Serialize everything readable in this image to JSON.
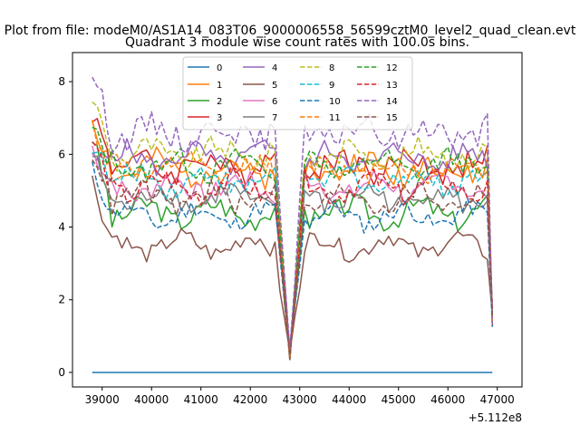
{
  "chart_data": {
    "type": "line",
    "suptitle": "Plot from file: modeM0/AS1A14_083T06_9000006558_56599cztM0_level2_quad_clean.evt",
    "title": "Quadrant 3 module wise count rates with 100.0s bins.",
    "xlabel": "",
    "ylabel": "",
    "x_offset_label": "+5.112e8",
    "xlim": [
      38400,
      47500
    ],
    "ylim": [
      -0.4,
      8.8
    ],
    "x_start": 38800,
    "x_step": 100,
    "n_points": 82,
    "dip": {
      "start": 42500,
      "bottom": 42800,
      "end": 43100,
      "min": 0.3
    },
    "last_point": {
      "x": 46900,
      "value": 1.5
    },
    "xticks": [
      39000,
      40000,
      41000,
      42000,
      43000,
      44000,
      45000,
      46000,
      47000
    ],
    "xtick_labels": [
      "39000",
      "40000",
      "41000",
      "42000",
      "43000",
      "44000",
      "45000",
      "46000",
      "47000"
    ],
    "yticks": [
      0,
      2,
      4,
      6,
      8
    ],
    "ytick_labels": [
      "0",
      "2",
      "4",
      "6",
      "8"
    ],
    "legend_position": "upper center",
    "legend_columns": 4,
    "series": [
      {
        "name": "0",
        "color": "#1f77b4",
        "dashed": false,
        "level": 0.0,
        "start": 0.0,
        "amp": 0.0,
        "seed": 1
      },
      {
        "name": "1",
        "color": "#ff7f0e",
        "dashed": false,
        "level": 5.6,
        "start": 7.0,
        "amp": 0.35,
        "seed": 2
      },
      {
        "name": "2",
        "color": "#2ca02c",
        "dashed": false,
        "level": 4.4,
        "start": 6.5,
        "amp": 0.3,
        "seed": 3
      },
      {
        "name": "3",
        "color": "#d62728",
        "dashed": false,
        "level": 5.7,
        "start": 7.2,
        "amp": 0.35,
        "seed": 4
      },
      {
        "name": "4",
        "color": "#9467bd",
        "dashed": false,
        "level": 5.9,
        "start": 5.8,
        "amp": 0.3,
        "seed": 5
      },
      {
        "name": "5",
        "color": "#8c564b",
        "dashed": false,
        "level": 3.5,
        "start": 5.3,
        "amp": 0.25,
        "seed": 6
      },
      {
        "name": "6",
        "color": "#e377c2",
        "dashed": false,
        "level": 5.1,
        "start": 6.2,
        "amp": 0.3,
        "seed": 7
      },
      {
        "name": "7",
        "color": "#7f7f7f",
        "dashed": false,
        "level": 4.8,
        "start": 6.0,
        "amp": 0.3,
        "seed": 8
      },
      {
        "name": "8",
        "color": "#bcbd22",
        "dashed": true,
        "level": 6.0,
        "start": 7.6,
        "amp": 0.3,
        "seed": 9
      },
      {
        "name": "9",
        "color": "#17becf",
        "dashed": true,
        "level": 5.3,
        "start": 6.3,
        "amp": 0.3,
        "seed": 10
      },
      {
        "name": "10",
        "color": "#1f77b4",
        "dashed": true,
        "level": 4.3,
        "start": 5.6,
        "amp": 0.25,
        "seed": 11
      },
      {
        "name": "11",
        "color": "#ff7f0e",
        "dashed": true,
        "level": 5.6,
        "start": 6.8,
        "amp": 0.3,
        "seed": 12
      },
      {
        "name": "12",
        "color": "#2ca02c",
        "dashed": true,
        "level": 5.7,
        "start": 6.7,
        "amp": 0.3,
        "seed": 13
      },
      {
        "name": "13",
        "color": "#d62728",
        "dashed": true,
        "level": 5.1,
        "start": 6.4,
        "amp": 0.3,
        "seed": 14
      },
      {
        "name": "14",
        "color": "#9467bd",
        "dashed": true,
        "level": 6.6,
        "start": 8.3,
        "amp": 0.35,
        "seed": 15
      },
      {
        "name": "15",
        "color": "#8c564b",
        "dashed": true,
        "level": 4.8,
        "start": 6.1,
        "amp": 0.3,
        "seed": 16
      }
    ]
  }
}
